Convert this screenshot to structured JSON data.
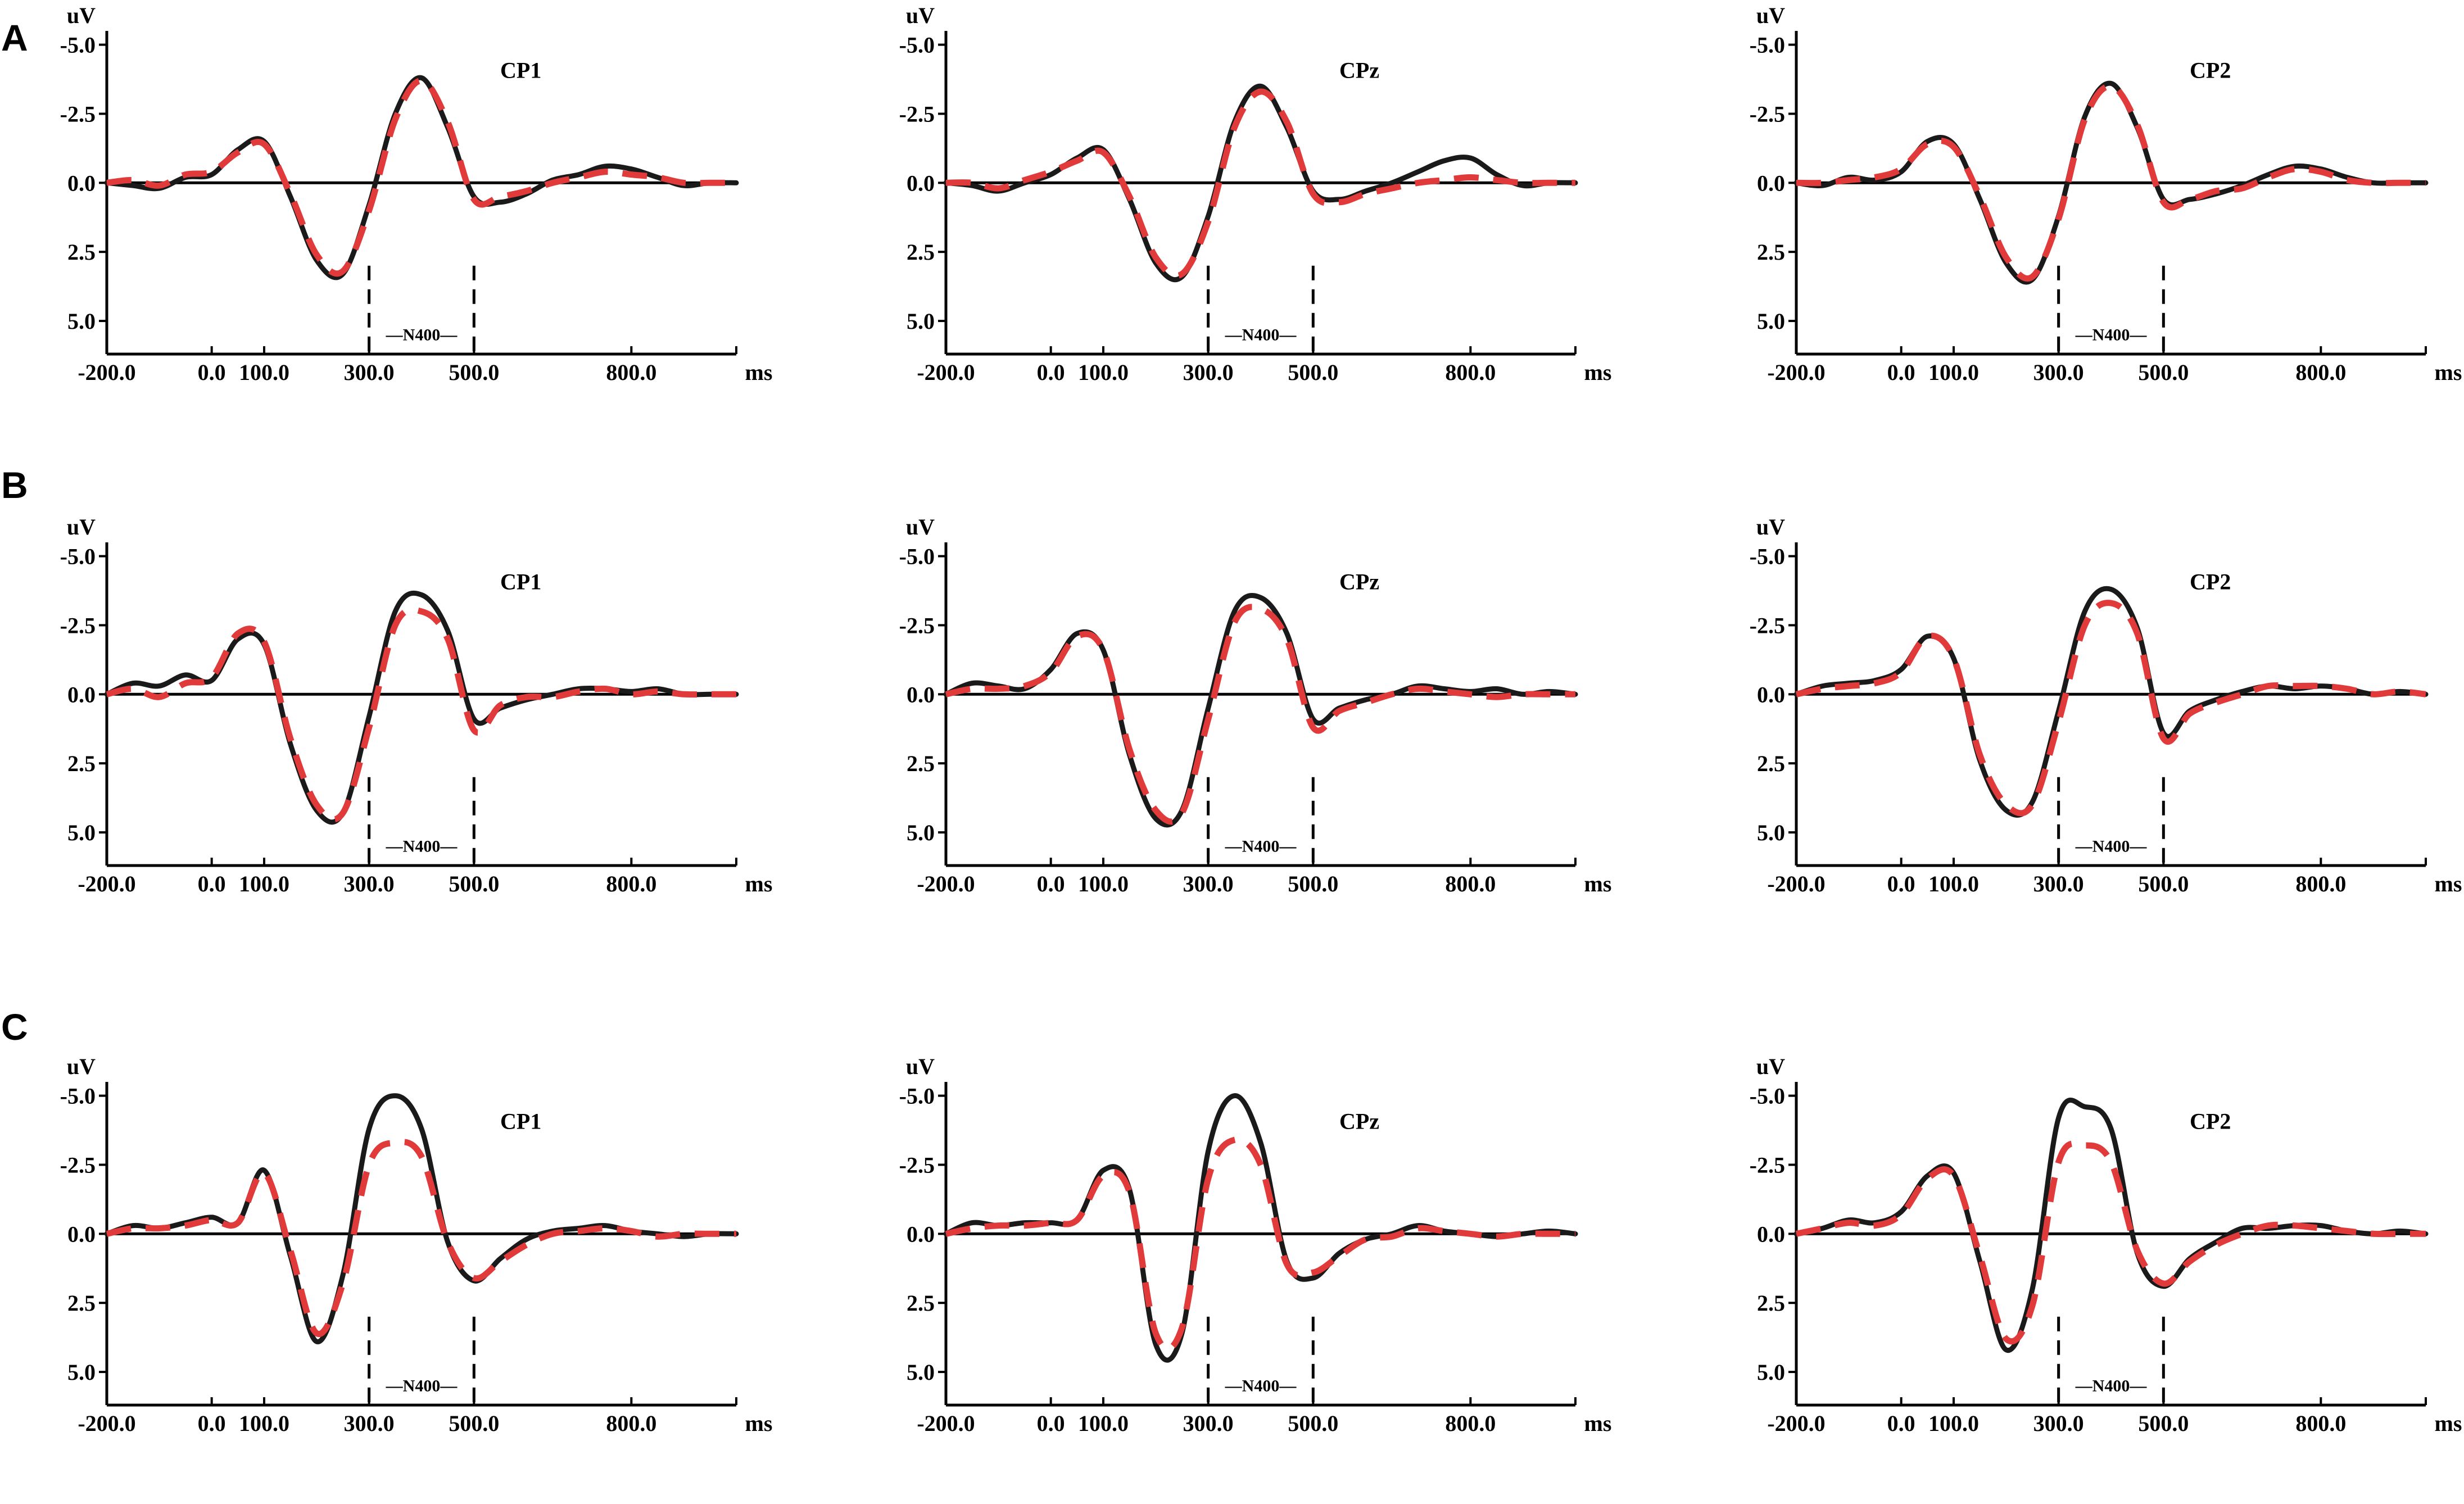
{
  "colors": {
    "condition_a": "#1a1a1a",
    "condition_b": "#e03a3a",
    "axis": "#000000"
  },
  "x_ticks": [
    "-200.0",
    "0.0",
    "100.0",
    "300.0",
    "500.0",
    "800.0"
  ],
  "x_tick_values": [
    -200,
    0,
    100,
    300,
    500,
    800
  ],
  "x_unit": "ms",
  "y_ticks": [
    "-5.0",
    "-2.5",
    "0.0",
    "2.5",
    "5.0"
  ],
  "y_tick_values": [
    -5,
    -2.5,
    0,
    2.5,
    5
  ],
  "y_unit": "uV",
  "window_label": "—N400—",
  "chart_data": [
    {
      "type": "line",
      "row": "A",
      "title": "CP1",
      "xlim": [
        -200,
        1000
      ],
      "ylim": [
        -5.5,
        6.2
      ],
      "y_inverted": true,
      "window": [
        300,
        500
      ],
      "x": [
        -200,
        -150,
        -100,
        -50,
        0,
        50,
        100,
        150,
        200,
        250,
        300,
        350,
        400,
        450,
        500,
        550,
        600,
        650,
        700,
        750,
        800,
        850,
        900,
        950,
        1000
      ],
      "series": [
        {
          "values": [
            0,
            0.1,
            0.2,
            -0.2,
            -0.3,
            -1.2,
            -1.5,
            0.5,
            2.8,
            3.3,
            0.8,
            -2.5,
            -3.8,
            -2.0,
            0.5,
            0.7,
            0.4,
            -0.1,
            -0.3,
            -0.6,
            -0.5,
            -0.2,
            0.1,
            0,
            0
          ]
        },
        {
          "values": [
            0,
            -0.1,
            0.1,
            -0.3,
            -0.4,
            -1.1,
            -1.4,
            0.4,
            2.6,
            3.2,
            1.0,
            -2.3,
            -3.7,
            -2.2,
            0.6,
            0.5,
            0.3,
            0.0,
            -0.2,
            -0.4,
            -0.3,
            -0.2,
            0,
            0,
            0
          ]
        }
      ]
    },
    {
      "type": "line",
      "row": "A",
      "title": "CPz",
      "xlim": [
        -200,
        1000
      ],
      "ylim": [
        -5.5,
        6.2
      ],
      "y_inverted": true,
      "window": [
        300,
        500
      ],
      "x": [
        -200,
        -150,
        -100,
        -50,
        0,
        50,
        100,
        150,
        200,
        250,
        300,
        350,
        400,
        450,
        500,
        550,
        600,
        650,
        700,
        750,
        800,
        850,
        900,
        950,
        1000
      ],
      "series": [
        {
          "values": [
            0,
            0.1,
            0.3,
            0.0,
            -0.3,
            -0.9,
            -1.2,
            0.6,
            2.9,
            3.4,
            1.2,
            -2.2,
            -3.5,
            -2.0,
            0.3,
            0.6,
            0.3,
            0.0,
            -0.4,
            -0.8,
            -0.9,
            -0.3,
            0.1,
            0.0,
            0
          ]
        },
        {
          "values": [
            0,
            0.0,
            0.2,
            -0.1,
            -0.4,
            -0.8,
            -1.1,
            0.5,
            2.7,
            3.3,
            1.4,
            -2.0,
            -3.3,
            -2.2,
            0.4,
            0.7,
            0.4,
            0.2,
            0.0,
            -0.1,
            -0.2,
            -0.1,
            0.0,
            0.0,
            0
          ]
        }
      ]
    },
    {
      "type": "line",
      "row": "A",
      "title": "CP2",
      "xlim": [
        -200,
        1000
      ],
      "ylim": [
        -5.5,
        6.2
      ],
      "y_inverted": true,
      "window": [
        300,
        500
      ],
      "x": [
        -200,
        -150,
        -100,
        -50,
        0,
        50,
        100,
        150,
        200,
        250,
        300,
        350,
        400,
        450,
        500,
        550,
        600,
        650,
        700,
        750,
        800,
        850,
        900,
        950,
        1000
      ],
      "series": [
        {
          "values": [
            0,
            0.1,
            -0.2,
            -0.1,
            -0.4,
            -1.5,
            -1.4,
            0.6,
            2.9,
            3.5,
            1.2,
            -2.4,
            -3.6,
            -2.0,
            0.6,
            0.6,
            0.4,
            0.1,
            -0.3,
            -0.6,
            -0.5,
            -0.2,
            0.0,
            0.0,
            0
          ]
        },
        {
          "values": [
            0,
            0.0,
            -0.1,
            -0.2,
            -0.5,
            -1.4,
            -1.3,
            0.5,
            2.7,
            3.4,
            1.3,
            -2.3,
            -3.5,
            -2.1,
            0.7,
            0.6,
            0.3,
            0.2,
            -0.2,
            -0.5,
            -0.4,
            -0.1,
            0.0,
            0.0,
            0
          ]
        }
      ]
    },
    {
      "type": "line",
      "row": "B",
      "title": "CP1",
      "xlim": [
        -200,
        1000
      ],
      "ylim": [
        -5.5,
        6.2
      ],
      "y_inverted": true,
      "window": [
        300,
        500
      ],
      "x": [
        -200,
        -150,
        -100,
        -50,
        0,
        50,
        100,
        150,
        200,
        250,
        300,
        350,
        400,
        450,
        500,
        550,
        600,
        650,
        700,
        750,
        800,
        850,
        900,
        950,
        1000
      ],
      "series": [
        {
          "values": [
            0,
            -0.4,
            -0.3,
            -0.7,
            -0.5,
            -2.0,
            -1.8,
            1.8,
            4.2,
            4.3,
            0.8,
            -3.0,
            -3.6,
            -2.3,
            0.9,
            0.5,
            0.2,
            0.0,
            -0.2,
            -0.2,
            -0.1,
            -0.2,
            0.0,
            0.0,
            0
          ]
        },
        {
          "values": [
            0,
            -0.2,
            0.1,
            -0.4,
            -0.6,
            -2.2,
            -1.9,
            1.6,
            4.0,
            4.3,
            1.2,
            -2.5,
            -3.0,
            -2.0,
            1.3,
            0.4,
            0.1,
            0.1,
            -0.1,
            -0.2,
            0.0,
            -0.1,
            0.0,
            0.0,
            0
          ]
        }
      ]
    },
    {
      "type": "line",
      "row": "B",
      "title": "CPz",
      "xlim": [
        -200,
        1000
      ],
      "ylim": [
        -5.5,
        6.2
      ],
      "y_inverted": true,
      "window": [
        300,
        500
      ],
      "x": [
        -200,
        -150,
        -100,
        -50,
        0,
        50,
        100,
        150,
        200,
        250,
        300,
        350,
        400,
        450,
        500,
        550,
        600,
        650,
        700,
        750,
        800,
        850,
        900,
        950,
        1000
      ],
      "series": [
        {
          "values": [
            0,
            -0.4,
            -0.3,
            -0.2,
            -0.9,
            -2.2,
            -1.6,
            2.2,
            4.5,
            4.2,
            0.5,
            -3.0,
            -3.5,
            -2.2,
            0.9,
            0.5,
            0.2,
            0.0,
            -0.3,
            -0.2,
            -0.1,
            -0.2,
            0.0,
            -0.1,
            0
          ]
        },
        {
          "values": [
            0,
            -0.2,
            -0.2,
            -0.3,
            -0.8,
            -2.1,
            -1.6,
            2.0,
            4.2,
            4.3,
            0.9,
            -2.6,
            -3.1,
            -2.0,
            1.2,
            0.6,
            0.3,
            0.0,
            -0.2,
            -0.1,
            0.0,
            0.1,
            0.0,
            0.0,
            0
          ]
        }
      ]
    },
    {
      "type": "line",
      "row": "B",
      "title": "CP2",
      "xlim": [
        -200,
        1000
      ],
      "ylim": [
        -5.5,
        6.2
      ],
      "y_inverted": true,
      "window": [
        300,
        500
      ],
      "x": [
        -200,
        -150,
        -100,
        -50,
        0,
        50,
        100,
        150,
        200,
        250,
        300,
        350,
        400,
        450,
        500,
        550,
        600,
        650,
        700,
        750,
        800,
        850,
        900,
        950,
        1000
      ],
      "series": [
        {
          "values": [
            0,
            -0.3,
            -0.4,
            -0.5,
            -0.9,
            -2.1,
            -1.3,
            2.4,
            4.2,
            3.9,
            0.6,
            -3.0,
            -3.8,
            -2.4,
            1.4,
            0.6,
            0.2,
            -0.1,
            -0.3,
            -0.2,
            -0.3,
            -0.2,
            0.0,
            -0.1,
            0
          ]
        },
        {
          "values": [
            0,
            -0.2,
            -0.3,
            -0.4,
            -0.8,
            -2.1,
            -1.3,
            2.2,
            4.0,
            4.0,
            1.0,
            -2.5,
            -3.3,
            -2.2,
            1.6,
            0.7,
            0.3,
            0.0,
            -0.3,
            -0.3,
            -0.3,
            -0.2,
            0.0,
            -0.1,
            0
          ]
        }
      ]
    },
    {
      "type": "line",
      "row": "C",
      "title": "CP1",
      "xlim": [
        -200,
        1000
      ],
      "ylim": [
        -5.5,
        6.2
      ],
      "y_inverted": true,
      "window": [
        300,
        500
      ],
      "x": [
        -200,
        -150,
        -100,
        -50,
        0,
        50,
        100,
        150,
        200,
        250,
        300,
        350,
        400,
        450,
        500,
        550,
        600,
        650,
        700,
        750,
        800,
        850,
        900,
        950,
        1000
      ],
      "series": [
        {
          "values": [
            0,
            -0.3,
            -0.2,
            -0.4,
            -0.6,
            -0.4,
            -2.3,
            0.8,
            3.9,
            1.5,
            -3.8,
            -5.0,
            -3.8,
            0.3,
            1.7,
            0.9,
            0.2,
            -0.1,
            -0.2,
            -0.3,
            -0.1,
            0.0,
            0.1,
            0.0,
            0
          ]
        },
        {
          "values": [
            0,
            -0.2,
            -0.2,
            -0.3,
            -0.5,
            -0.4,
            -2.2,
            0.6,
            3.6,
            1.8,
            -2.5,
            -3.3,
            -2.8,
            0.3,
            1.6,
            1.0,
            0.4,
            0.0,
            -0.1,
            -0.2,
            -0.1,
            0.1,
            0.0,
            0.0,
            0
          ]
        }
      ]
    },
    {
      "type": "line",
      "row": "C",
      "title": "CPz",
      "xlim": [
        -200,
        1000
      ],
      "ylim": [
        -5.5,
        6.2
      ],
      "y_inverted": true,
      "window": [
        300,
        500
      ],
      "x": [
        -200,
        -150,
        -100,
        -50,
        0,
        50,
        100,
        150,
        200,
        250,
        300,
        350,
        400,
        450,
        500,
        550,
        600,
        650,
        700,
        750,
        800,
        850,
        900,
        950,
        1000
      ],
      "series": [
        {
          "values": [
            0,
            -0.4,
            -0.3,
            -0.4,
            -0.4,
            -0.5,
            -2.3,
            -1.6,
            4.0,
            3.6,
            -3.0,
            -5.0,
            -3.3,
            1.0,
            1.6,
            0.7,
            0.2,
            0.0,
            -0.3,
            -0.1,
            0.0,
            0.1,
            0.0,
            -0.1,
            0
          ]
        },
        {
          "values": [
            0,
            -0.2,
            -0.3,
            -0.3,
            -0.4,
            -0.5,
            -2.1,
            -1.5,
            3.6,
            3.4,
            -2.0,
            -3.4,
            -2.5,
            1.1,
            1.4,
            0.8,
            0.2,
            0.1,
            -0.2,
            -0.1,
            0.0,
            0.1,
            0.0,
            0.0,
            0
          ]
        }
      ]
    },
    {
      "type": "line",
      "row": "C",
      "title": "CP2",
      "xlim": [
        -200,
        1000
      ],
      "ylim": [
        -5.5,
        6.2
      ],
      "y_inverted": true,
      "window": [
        300,
        500
      ],
      "x": [
        -200,
        -150,
        -100,
        -50,
        0,
        50,
        100,
        150,
        200,
        250,
        300,
        350,
        400,
        450,
        500,
        550,
        600,
        650,
        700,
        750,
        800,
        850,
        900,
        950,
        1000
      ],
      "series": [
        {
          "values": [
            0,
            -0.2,
            -0.5,
            -0.4,
            -0.8,
            -2.1,
            -2.2,
            1.0,
            4.2,
            2.0,
            -4.2,
            -4.6,
            -3.8,
            0.7,
            1.9,
            0.9,
            0.3,
            -0.2,
            -0.2,
            -0.3,
            -0.3,
            -0.1,
            0.0,
            -0.1,
            0
          ]
        },
        {
          "values": [
            0,
            -0.2,
            -0.4,
            -0.3,
            -0.7,
            -2.0,
            -2.1,
            0.8,
            3.8,
            2.6,
            -2.6,
            -3.2,
            -2.6,
            0.6,
            1.8,
            1.0,
            0.4,
            0.0,
            -0.3,
            -0.3,
            -0.2,
            -0.1,
            0.0,
            0.0,
            0
          ]
        }
      ]
    }
  ]
}
